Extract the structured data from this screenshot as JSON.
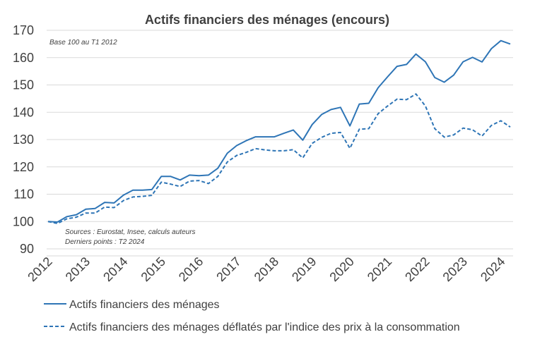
{
  "chart_data": {
    "type": "line",
    "title": "Actifs financiers des ménages (encours)",
    "base_note": "Base 100 au T1 2012",
    "sources_note": "Sources : Eurostat, Insee, calculs auteurs",
    "last_point_note": "Derniers points : T2 2024",
    "ylim": [
      90,
      170
    ],
    "yticks": [
      90,
      100,
      110,
      120,
      130,
      140,
      150,
      160,
      170
    ],
    "year_labels": [
      "2012",
      "2013",
      "2014",
      "2015",
      "2016",
      "2017",
      "2018",
      "2019",
      "2020",
      "2021",
      "2022",
      "2023",
      "2024"
    ],
    "x": [
      "T1 2012",
      "T2 2012",
      "T3 2012",
      "T4 2012",
      "T1 2013",
      "T2 2013",
      "T3 2013",
      "T4 2013",
      "T1 2014",
      "T2 2014",
      "T3 2014",
      "T4 2014",
      "T1 2015",
      "T2 2015",
      "T3 2015",
      "T4 2015",
      "T1 2016",
      "T2 2016",
      "T3 2016",
      "T4 2016",
      "T1 2017",
      "T2 2017",
      "T3 2017",
      "T4 2017",
      "T1 2018",
      "T2 2018",
      "T3 2018",
      "T4 2018",
      "T1 2019",
      "T2 2019",
      "T3 2019",
      "T4 2019",
      "T1 2020",
      "T2 2020",
      "T3 2020",
      "T4 2020",
      "T1 2021",
      "T2 2021",
      "T3 2021",
      "T4 2021",
      "T1 2022",
      "T2 2022",
      "T3 2022",
      "T4 2022",
      "T1 2023",
      "T2 2023",
      "T3 2023",
      "T4 2023",
      "T1 2024",
      "T2 2024"
    ],
    "series": [
      {
        "name": "Actifs financiers des ménages",
        "style": "solid",
        "color": "#2E75B6",
        "values": [
          100,
          99.8,
          101.8,
          102.5,
          104.5,
          104.8,
          107,
          106.8,
          109.7,
          111.5,
          111.5,
          111.7,
          116.5,
          116.5,
          115.2,
          117,
          116.8,
          117,
          119.5,
          125,
          127.8,
          129.6,
          131,
          131,
          131,
          132.3,
          133.5,
          129.8,
          135.5,
          139.2,
          141,
          141.8,
          135,
          143,
          143.3,
          149,
          153,
          156.8,
          157.5,
          161.3,
          158.5,
          152.7,
          151,
          153.6,
          158.5,
          160.1,
          158.4,
          163.3,
          166.2,
          165
        ]
      },
      {
        "name": "Actifs financiers des ménages déflatés par l'indice des prix à la consommation",
        "style": "dashed",
        "color": "#2E75B6",
        "values": [
          100,
          99.3,
          101,
          101.6,
          103.1,
          103.1,
          105.3,
          105.1,
          107.7,
          109,
          109.2,
          109.6,
          114.4,
          113.7,
          112.8,
          114.8,
          115,
          113.9,
          116.5,
          121.8,
          124.2,
          125.3,
          126.7,
          126.2,
          125.9,
          125.9,
          126.3,
          123.3,
          128.6,
          130.8,
          132.3,
          132.6,
          126.8,
          133.8,
          134,
          139.5,
          142.3,
          144.8,
          144.6,
          146.7,
          142.3,
          134,
          130.9,
          131.7,
          134.2,
          133.6,
          131.3,
          135.2,
          136.9,
          134.6
        ]
      }
    ],
    "grid": true,
    "legend_placement": "bottom"
  }
}
